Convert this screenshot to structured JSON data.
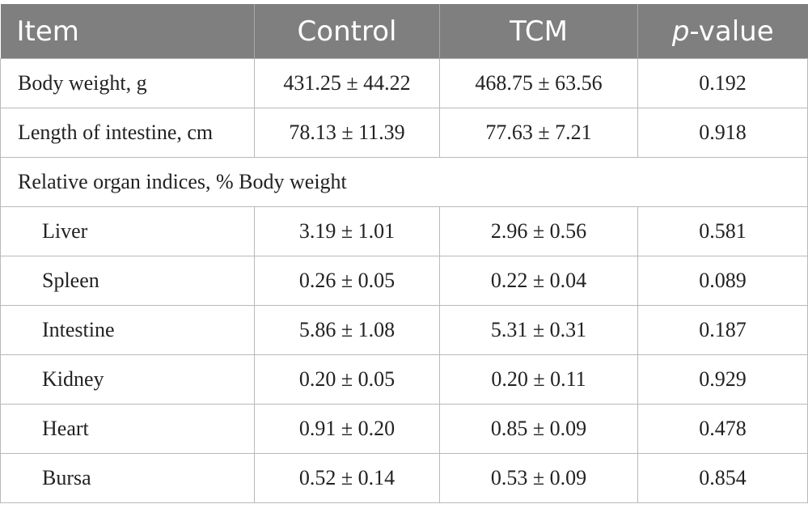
{
  "table": {
    "headers": {
      "item": "Item",
      "control": "Control",
      "tcm": "TCM",
      "p_italic": "p",
      "p_rest": "-value"
    },
    "rows": [
      {
        "item": "Body weight, g",
        "control": "431.25 ± 44.22",
        "tcm": "468.75 ± 63.56",
        "p": "0.192"
      },
      {
        "item": "Length of intestine, cm",
        "control": "78.13 ± 11.39",
        "tcm": "77.63 ± 7.21",
        "p": "0.918"
      }
    ],
    "section_label": "Relative organ indices, % Body weight",
    "organ_rows": [
      {
        "item": "Liver",
        "control": "3.19 ± 1.01",
        "tcm": "2.96 ± 0.56",
        "p": "0.581"
      },
      {
        "item": "Spleen",
        "control": "0.26 ± 0.05",
        "tcm": "0.22 ± 0.04",
        "p": "0.089"
      },
      {
        "item": "Intestine",
        "control": "5.86 ± 1.08",
        "tcm": "5.31 ± 0.31",
        "p": "0.187"
      },
      {
        "item": "Kidney",
        "control": "0.20 ± 0.05",
        "tcm": "0.20 ± 0.11",
        "p": "0.929"
      },
      {
        "item": "Heart",
        "control": "0.91 ± 0.20",
        "tcm": "0.85 ± 0.09",
        "p": "0.478"
      },
      {
        "item": "Bursa",
        "control": "0.52 ± 0.14",
        "tcm": "0.53 ± 0.09",
        "p": "0.854"
      }
    ]
  }
}
